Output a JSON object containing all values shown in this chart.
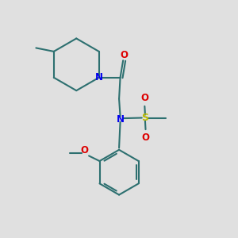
{
  "bg_color": "#e0e0e0",
  "bond_color": "#2d7070",
  "n_color": "#0000ee",
  "o_color": "#dd0000",
  "s_color": "#bbbb00",
  "line_width": 1.5,
  "fig_width": 3.0,
  "fig_height": 3.0,
  "dpi": 100,
  "xlim": [
    0,
    10
  ],
  "ylim": [
    0,
    10
  ],
  "font_size": 8.5
}
